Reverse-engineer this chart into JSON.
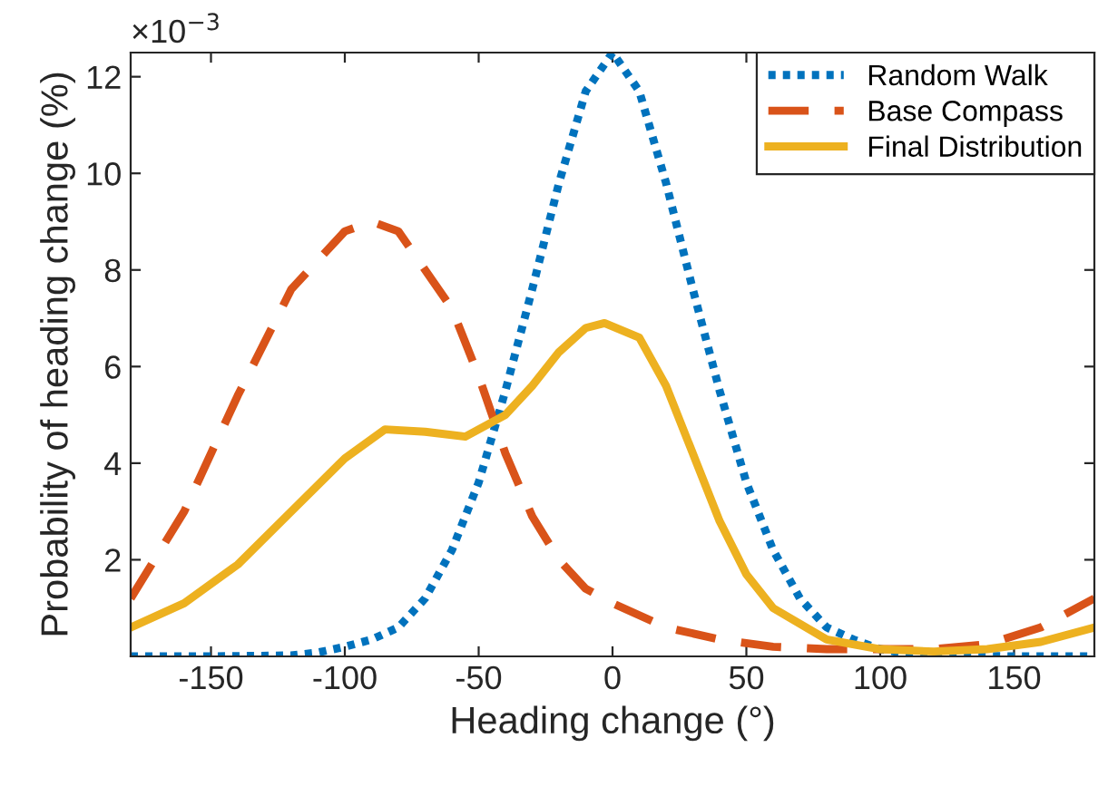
{
  "chart_data": {
    "type": "line",
    "xlabel": "Heading change (°)",
    "ylabel": "Probability of heading change (%)",
    "annotations": [
      "×10$^{−3}$"
    ],
    "xlim": [
      -180,
      180
    ],
    "xticks": [
      -150,
      -100,
      -50,
      0,
      50,
      100,
      150
    ],
    "ylim": [
      0,
      12.5
    ],
    "yticks": [
      2,
      4,
      6,
      8,
      10,
      12
    ],
    "grid": false,
    "legend": "top right",
    "series": [
      {
        "name": "Random Walk",
        "color": "#0072bd",
        "line_style": "dotted",
        "x": [
          -180,
          -150,
          -120,
          -110,
          -100,
          -90,
          -80,
          -70,
          -60,
          -50,
          -40,
          -30,
          -20,
          -10,
          0,
          10,
          20,
          30,
          40,
          50,
          60,
          70,
          80,
          90,
          100,
          110,
          120,
          150,
          180
        ],
        "values": [
          0,
          0,
          0.02,
          0.08,
          0.2,
          0.35,
          0.6,
          1.2,
          2.2,
          3.6,
          5.5,
          7.6,
          9.8,
          11.7,
          12.5,
          11.7,
          9.8,
          7.6,
          5.5,
          3.6,
          2.2,
          1.2,
          0.6,
          0.35,
          0.15,
          0.06,
          0.02,
          0,
          0
        ]
      },
      {
        "name": "Base Compass",
        "color": "#d95319",
        "line_style": "dashed",
        "x": [
          -180,
          -160,
          -140,
          -120,
          -100,
          -90,
          -80,
          -60,
          -50,
          -40,
          -30,
          -20,
          -10,
          0,
          20,
          40,
          60,
          80,
          100,
          120,
          140,
          160,
          180
        ],
        "values": [
          1.2,
          3.0,
          5.4,
          7.6,
          8.8,
          9.0,
          8.8,
          7.2,
          5.8,
          4.2,
          2.9,
          2.0,
          1.4,
          1.1,
          0.6,
          0.35,
          0.2,
          0.15,
          0.15,
          0.15,
          0.25,
          0.6,
          1.2
        ]
      },
      {
        "name": "Final Distribution",
        "color": "#edb120",
        "line_style": "solid",
        "x": [
          -180,
          -160,
          -140,
          -120,
          -100,
          -85,
          -70,
          -55,
          -40,
          -30,
          -20,
          -10,
          -3,
          10,
          20,
          30,
          40,
          50,
          60,
          80,
          100,
          120,
          140,
          160,
          180
        ],
        "values": [
          0.6,
          1.1,
          1.9,
          3.0,
          4.1,
          4.7,
          4.65,
          4.55,
          5.0,
          5.6,
          6.3,
          6.8,
          6.9,
          6.6,
          5.6,
          4.2,
          2.8,
          1.7,
          1.0,
          0.35,
          0.15,
          0.1,
          0.15,
          0.3,
          0.6
        ]
      }
    ]
  }
}
